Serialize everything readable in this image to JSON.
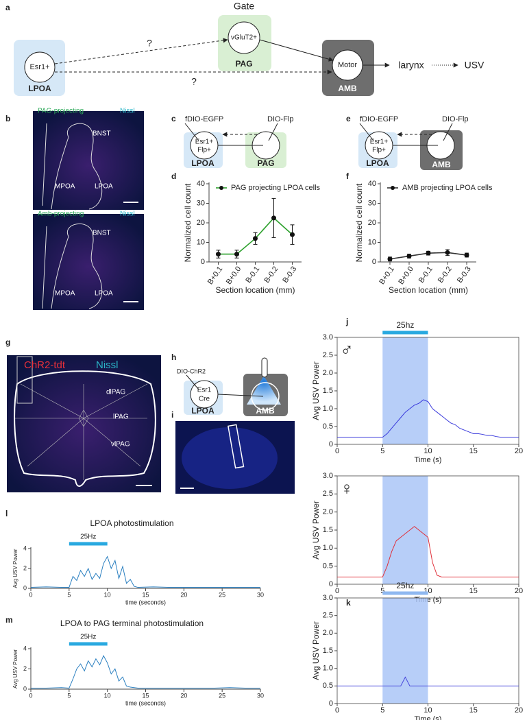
{
  "figure": {
    "panel_labels": [
      "a",
      "b",
      "c",
      "d",
      "e",
      "f",
      "g",
      "h",
      "i",
      "j",
      "k",
      "l",
      "m"
    ],
    "a": {
      "gate": "Gate",
      "esr1": "Esr1+",
      "lpoa": "LPOA",
      "vglut2": "vGluT2+",
      "pag": "PAG",
      "motor": "Motor",
      "amb": "AMB",
      "q1": "?",
      "q2": "?",
      "larynx": "larynx",
      "usv": "USV"
    },
    "b": {
      "top_label": "PAG-projecting",
      "top_stain": "Nissl",
      "bottom_label": "Amb-projecting",
      "bottom_stain": "Nissl",
      "regions_top": [
        "BNST",
        "MPOA",
        "LPOA"
      ],
      "regions_bottom": [
        "BNST",
        "MPOA",
        "LPOA"
      ]
    },
    "c": {
      "virus_left": "fDIO-EGFP",
      "virus_right": "DIO-Flp",
      "cell": [
        "Esr1+",
        "Flp+"
      ],
      "left": "LPOA",
      "right": "PAG"
    },
    "e": {
      "virus_left": "fDIO-EGFP",
      "virus_right": "DIO-Flp",
      "cell": [
        "Esr1+",
        "Flp+"
      ],
      "left": "LPOA",
      "right": "AMB"
    },
    "g": {
      "stain_1": "ChR2-tdt",
      "stain_2": "Nissl",
      "regions": [
        "dlPAG",
        "lPAG",
        "vlPAG"
      ]
    },
    "h": {
      "virus": "DIO-ChR2",
      "cell": [
        "Esr1",
        "Cre"
      ],
      "left": "LPOA",
      "right": "AMB"
    }
  },
  "chart_data": [
    {
      "type": "line",
      "categories": [
        "B+0.1",
        "B+0.0",
        "B-0.1",
        "B-0.2",
        "B-0.3"
      ],
      "xlabel": "Section location (mm)",
      "ylabel": "Normalized cell count",
      "ylim": [
        0,
        40
      ],
      "yticks": [
        0,
        10,
        20,
        30,
        40
      ],
      "legend": "top-left",
      "series": [
        {
          "name": "PAG projecting LPOA cells",
          "color": "#2ca02c",
          "marker_color": "#111111",
          "values": [
            4,
            4,
            12,
            22.5,
            14
          ],
          "errors": [
            2,
            2,
            3,
            10,
            5
          ]
        }
      ]
    },
    {
      "type": "line",
      "categories": [
        "B+0.1",
        "B+0.0",
        "B-0.1",
        "B-0.2",
        "B-0.3"
      ],
      "xlabel": "Section location (mm)",
      "ylabel": "Normalized cell count",
      "ylim": [
        0,
        40
      ],
      "yticks": [
        0,
        10,
        20,
        30,
        40
      ],
      "legend": "top-left",
      "series": [
        {
          "name": "AMB projecting LPOA cells",
          "color": "#333333",
          "marker_color": "#111111",
          "values": [
            1.5,
            3,
            4.5,
            4.8,
            3.5
          ],
          "errors": [
            1,
            1,
            1,
            1.5,
            1
          ]
        }
      ]
    },
    {
      "type": "line",
      "symbol": "♂",
      "xlabel": "Time (s)",
      "ylabel": "Avg USV Power",
      "frame": true,
      "xlim": [
        0,
        20
      ],
      "xticks": [
        0,
        5,
        10,
        15,
        20
      ],
      "ylim": [
        0,
        3
      ],
      "yticks": [
        0,
        0.5,
        {
          "value": 1,
          "label": "1.0"
        },
        1.5,
        {
          "value": 2,
          "label": "2.0"
        },
        2.5,
        {
          "value": 3,
          "label": "3.0"
        }
      ],
      "stim": {
        "range": [
          5,
          10
        ],
        "label": "25hz",
        "color": "#29a9e0",
        "shade": "#aac6f7"
      },
      "x": [
        0,
        0.5,
        1,
        1.5,
        2,
        2.5,
        3,
        3.5,
        4,
        4.5,
        5,
        5.5,
        6,
        6.5,
        7,
        7.5,
        8,
        8.5,
        9,
        9.5,
        10,
        10.5,
        11,
        11.5,
        12,
        12.5,
        13,
        13.5,
        14,
        14.5,
        15,
        15.5,
        16,
        16.5,
        17,
        17.5,
        18,
        18.5,
        19,
        19.5,
        20
      ],
      "series": [
        {
          "color": "#3a3adc",
          "values": [
            0.2,
            0.2,
            0.2,
            0.2,
            0.2,
            0.2,
            0.2,
            0.2,
            0.2,
            0.2,
            0.2,
            0.3,
            0.45,
            0.6,
            0.75,
            0.9,
            1.0,
            1.1,
            1.15,
            1.25,
            1.2,
            1.0,
            0.9,
            0.8,
            0.7,
            0.6,
            0.55,
            0.45,
            0.4,
            0.35,
            0.3,
            0.3,
            0.28,
            0.25,
            0.25,
            0.22,
            0.2,
            0.2,
            0.2,
            0.2,
            0.2
          ]
        }
      ]
    },
    {
      "type": "line",
      "symbol": "♀",
      "xlabel": "Time (s)",
      "ylabel": "Avg USV Power",
      "frame": true,
      "xlim": [
        0,
        20
      ],
      "xticks": [
        0,
        5,
        10,
        15,
        20
      ],
      "ylim": [
        0,
        3
      ],
      "yticks": [
        0,
        0.5,
        {
          "value": 1,
          "label": "1.0"
        },
        1.5,
        {
          "value": 2,
          "label": "2.0"
        },
        2.5,
        {
          "value": 3,
          "label": "3.0"
        }
      ],
      "stim": {
        "range": [
          5,
          10
        ],
        "shade": "#aac6f7"
      },
      "x": [
        0,
        0.5,
        1,
        1.5,
        2,
        2.5,
        3,
        3.5,
        4,
        4.5,
        5,
        5.5,
        6,
        6.5,
        7,
        7.5,
        8,
        8.5,
        9,
        9.5,
        10,
        10.5,
        11,
        11.5,
        12,
        12.5,
        13,
        13.5,
        14,
        14.5,
        15,
        15.5,
        16,
        16.5,
        17,
        17.5,
        18,
        18.5,
        19,
        19.5,
        20
      ],
      "series": [
        {
          "color": "#e0303a",
          "values": [
            0.2,
            0.2,
            0.2,
            0.2,
            0.2,
            0.2,
            0.2,
            0.2,
            0.2,
            0.2,
            0.2,
            0.5,
            0.9,
            1.2,
            1.3,
            1.4,
            1.5,
            1.6,
            1.5,
            1.4,
            1.3,
            0.6,
            0.25,
            0.2,
            0.2,
            0.2,
            0.2,
            0.2,
            0.2,
            0.2,
            0.2,
            0.2,
            0.2,
            0.2,
            0.2,
            0.2,
            0.2,
            0.2,
            0.2,
            0.2,
            0.2
          ]
        }
      ]
    },
    {
      "type": "line",
      "xlabel": "Time (s)",
      "ylabel": "Avg USV Power",
      "frame": true,
      "xlim": [
        0,
        20
      ],
      "xticks": [
        0,
        5,
        10,
        15,
        20
      ],
      "ylim": [
        0,
        3
      ],
      "yticks": [
        0,
        0.5,
        {
          "value": 1,
          "label": "1.0"
        },
        1.5,
        {
          "value": 2,
          "label": "2.0"
        },
        2.5,
        {
          "value": 3,
          "label": "3.0"
        }
      ],
      "stim": {
        "range": [
          5,
          10
        ],
        "label": "25hz",
        "color": "#8fb8f0",
        "shade": "#aac6f7"
      },
      "x": [
        0,
        0.5,
        1,
        1.5,
        2,
        2.5,
        3,
        3.5,
        4,
        4.5,
        5,
        5.5,
        6,
        6.5,
        7,
        7.5,
        8,
        8.5,
        9,
        9.5,
        10,
        10.5,
        11,
        11.5,
        12,
        12.5,
        13,
        13.5,
        14,
        14.5,
        15,
        15.5,
        16,
        16.5,
        17,
        17.5,
        18,
        18.5,
        19,
        19.5,
        20
      ],
      "series": [
        {
          "color": "#4a4adc",
          "values": [
            0.5,
            0.5,
            0.5,
            0.5,
            0.5,
            0.5,
            0.5,
            0.5,
            0.5,
            0.5,
            0.5,
            0.5,
            0.5,
            0.5,
            0.5,
            0.75,
            0.5,
            0.5,
            0.5,
            0.5,
            0.5,
            0.5,
            0.5,
            0.5,
            0.5,
            0.5,
            0.5,
            0.5,
            0.5,
            0.5,
            0.5,
            0.5,
            0.5,
            0.5,
            0.5,
            0.5,
            0.5,
            0.5,
            0.5,
            0.5,
            0.5
          ]
        }
      ]
    },
    {
      "type": "line",
      "title": "LPOA  photostimulation",
      "xlabel": "time (seconds)",
      "ylabel": "Avg USV Power",
      "xlim": [
        0,
        30
      ],
      "xticks": [
        0,
        5,
        10,
        15,
        20,
        25,
        30
      ],
      "ylim": [
        0,
        4
      ],
      "yticks": [
        0,
        2,
        4
      ],
      "stim": {
        "range": [
          5,
          10
        ],
        "label": "25Hz",
        "color": "#29a9e0"
      },
      "x": [
        0,
        2,
        4,
        5,
        5.5,
        6,
        6.5,
        7,
        7.5,
        8,
        8.5,
        9,
        9.5,
        10,
        10.5,
        11,
        11.5,
        12,
        12.5,
        13,
        13.5,
        14,
        16,
        18,
        20,
        22,
        24,
        26,
        28,
        30
      ],
      "series": [
        {
          "color": "#2a7fc0",
          "values": [
            0.1,
            0.15,
            0.1,
            0.1,
            1.2,
            0.8,
            1.8,
            1.2,
            2.0,
            0.9,
            1.5,
            1.0,
            2.5,
            3.2,
            2.0,
            2.8,
            1.0,
            2.2,
            0.5,
            0.9,
            0.2,
            0.1,
            0.15,
            0.1,
            0.1,
            0.1,
            0.1,
            0.1,
            0.1,
            0.1
          ]
        }
      ]
    },
    {
      "type": "line",
      "title": "LPOA to PAG terminal photostimulation",
      "xlabel": "time (seconds)",
      "ylabel": "Avg USV Power",
      "xlim": [
        0,
        30
      ],
      "xticks": [
        0,
        5,
        10,
        15,
        20,
        25,
        30
      ],
      "ylim": [
        0,
        4
      ],
      "yticks": [
        0,
        2,
        4
      ],
      "stim": {
        "range": [
          5,
          10
        ],
        "label": "25Hz",
        "color": "#29a9e0"
      },
      "x": [
        0,
        2,
        4,
        5,
        5.5,
        6,
        6.5,
        7,
        7.5,
        8,
        8.5,
        9,
        9.5,
        10,
        10.5,
        11,
        11.5,
        12,
        12.5,
        13,
        13.5,
        14,
        16,
        18,
        20,
        22,
        24,
        26,
        28,
        30
      ],
      "series": [
        {
          "color": "#2a7fc0",
          "values": [
            0.1,
            0.1,
            0.15,
            0.1,
            1.0,
            2.0,
            2.5,
            1.8,
            2.8,
            2.2,
            3.0,
            2.4,
            3.3,
            2.6,
            1.5,
            2.0,
            0.8,
            1.2,
            0.3,
            0.2,
            0.15,
            0.1,
            0.1,
            0.1,
            0.1,
            0.1,
            0.1,
            0.15,
            0.1,
            0.1
          ]
        }
      ]
    }
  ]
}
